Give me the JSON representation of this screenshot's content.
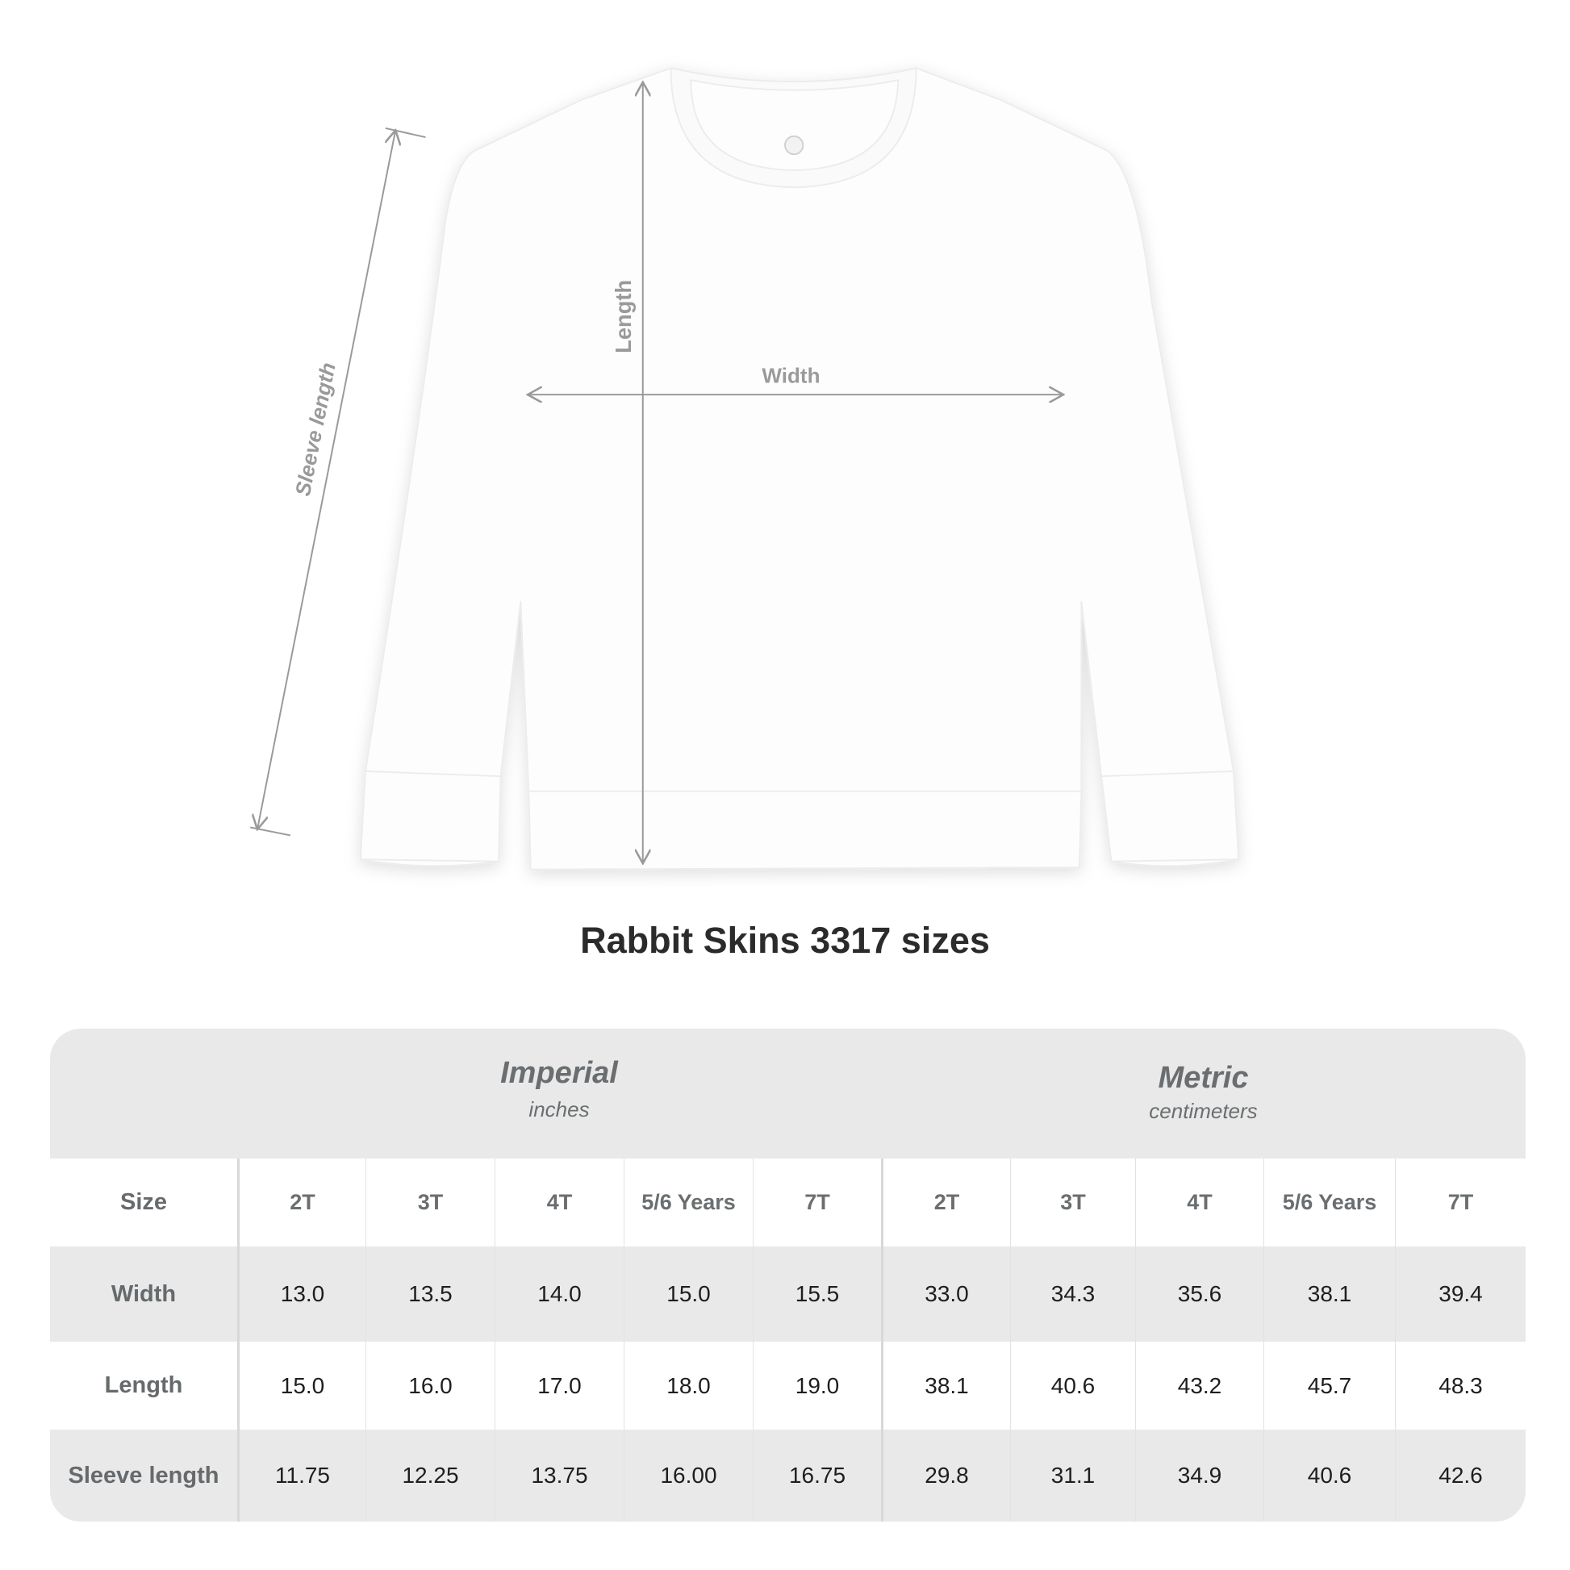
{
  "diagram": {
    "labels": {
      "length": "Length",
      "width": "Width",
      "sleeve_length": "Sleeve length"
    },
    "garment_color": "#ffffff",
    "measure_line_color": "#9a9a9a"
  },
  "title": "Rabbit Skins 3317 sizes",
  "table": {
    "groups": [
      {
        "title": "Imperial",
        "subtitle": "inches"
      },
      {
        "title": "Metric",
        "subtitle": "centimeters"
      }
    ],
    "size_label": "Size",
    "sizes": [
      "2T",
      "3T",
      "4T",
      "5/6 Years",
      "7T",
      "2T",
      "3T",
      "4T",
      "5/6 Years",
      "7T"
    ],
    "rows": [
      {
        "label": "Width",
        "values": [
          "13.0",
          "13.5",
          "14.0",
          "15.0",
          "15.5",
          "33.0",
          "34.3",
          "35.6",
          "38.1",
          "39.4"
        ]
      },
      {
        "label": "Length",
        "values": [
          "15.0",
          "16.0",
          "17.0",
          "18.0",
          "19.0",
          "38.1",
          "40.6",
          "43.2",
          "45.7",
          "48.3"
        ]
      },
      {
        "label": "Sleeve length",
        "values": [
          "11.75",
          "12.25",
          "13.75",
          "16.00",
          "16.75",
          "29.8",
          "31.1",
          "34.9",
          "40.6",
          "42.6"
        ]
      }
    ],
    "header_bg": "#e9e9e9"
  }
}
